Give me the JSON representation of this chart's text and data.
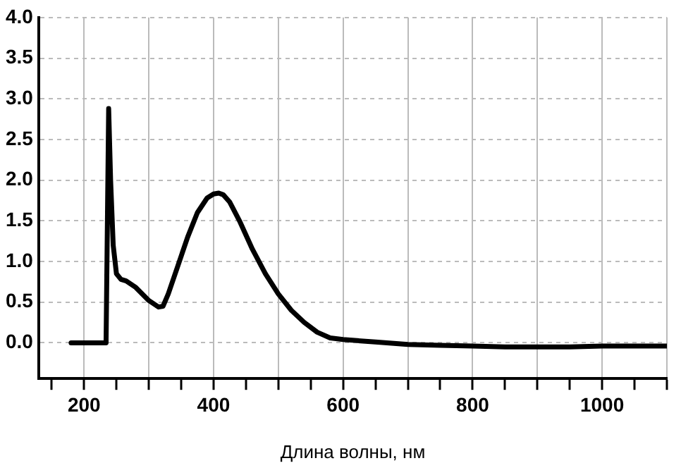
{
  "chart_data": {
    "type": "line",
    "xlabel": "Длина волны, нм",
    "xlim": [
      130,
      1100
    ],
    "ylim": [
      -0.44,
      4.0
    ],
    "xticks": [
      {
        "value": 150,
        "label": null
      },
      200,
      {
        "value": 250,
        "label": null
      },
      {
        "value": 300,
        "label": null
      },
      {
        "value": 350,
        "label": null
      },
      400,
      {
        "value": 450,
        "label": null
      },
      {
        "value": 500,
        "label": null
      },
      {
        "value": 550,
        "label": null
      },
      600,
      {
        "value": 650,
        "label": null
      },
      {
        "value": 700,
        "label": null
      },
      {
        "value": 750,
        "label": null
      },
      800,
      {
        "value": 850,
        "label": null
      },
      {
        "value": 900,
        "label": null
      },
      {
        "value": 950,
        "label": null
      },
      1000,
      {
        "value": 1050,
        "label": null
      },
      {
        "value": 1100,
        "label": null
      }
    ],
    "yticks": [
      {
        "value": 0,
        "label": "0.0"
      },
      0.5,
      {
        "value": 1,
        "label": "1.0"
      },
      1.5,
      {
        "value": 2,
        "label": "2.0"
      },
      2.5,
      {
        "value": 3,
        "label": "3.0"
      },
      3.5,
      {
        "value": 4,
        "label": "4.0"
      }
    ],
    "grid": true,
    "legend": false,
    "marker": "none",
    "line_style": "solid",
    "series": [
      {
        "color": "#000000",
        "x": [
          180,
          200,
          220,
          234,
          238,
          241,
          245,
          250,
          257,
          265,
          280,
          300,
          315,
          322,
          330,
          345,
          360,
          375,
          390,
          400,
          408,
          415,
          425,
          440,
          460,
          480,
          500,
          520,
          540,
          560,
          580,
          600,
          650,
          700,
          750,
          800,
          850,
          900,
          950,
          1000,
          1050,
          1100
        ],
        "values": [
          0,
          0,
          0,
          0,
          2.88,
          2.0,
          1.2,
          0.85,
          0.78,
          0.76,
          0.68,
          0.52,
          0.44,
          0.45,
          0.6,
          0.95,
          1.3,
          1.6,
          1.78,
          1.83,
          1.84,
          1.82,
          1.73,
          1.5,
          1.15,
          0.85,
          0.6,
          0.4,
          0.25,
          0.13,
          0.06,
          0.04,
          0.01,
          -0.02,
          -0.03,
          -0.04,
          -0.05,
          -0.05,
          -0.05,
          -0.04,
          -0.04,
          -0.04
        ]
      }
    ]
  }
}
